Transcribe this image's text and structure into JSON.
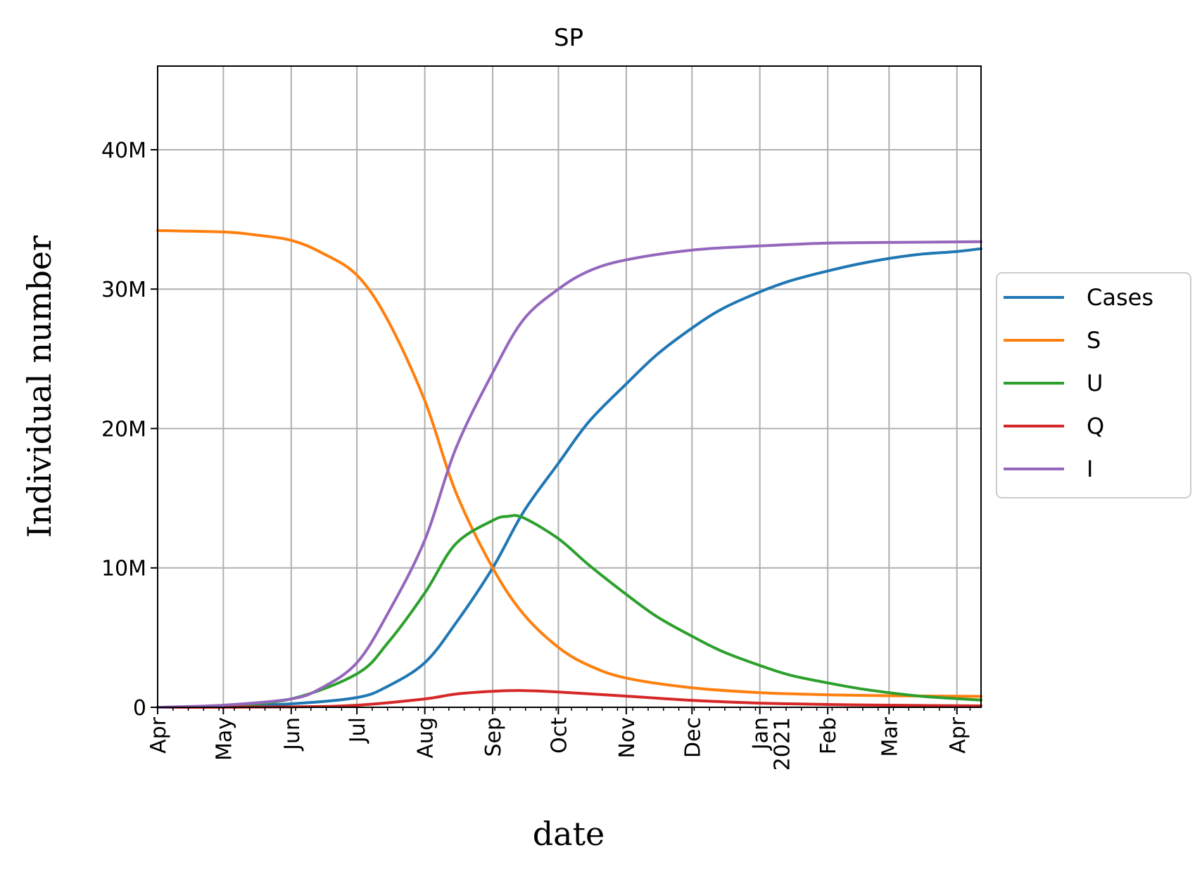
{
  "chart_data": {
    "type": "line",
    "title": "SP",
    "xlabel": "date",
    "ylabel": "Individual number",
    "ylim": [
      0,
      46000000
    ],
    "xlim": [
      "2020-04-01",
      "2021-04-12"
    ],
    "x_ticks": [
      {
        "date": "2020-04-01",
        "label": "Apr"
      },
      {
        "date": "2020-05-01",
        "label": "May"
      },
      {
        "date": "2020-06-01",
        "label": "Jun"
      },
      {
        "date": "2020-07-01",
        "label": "Jul"
      },
      {
        "date": "2020-08-01",
        "label": "Aug"
      },
      {
        "date": "2020-09-01",
        "label": "Sep"
      },
      {
        "date": "2020-10-01",
        "label": "Oct"
      },
      {
        "date": "2020-11-01",
        "label": "Nov"
      },
      {
        "date": "2020-12-01",
        "label": "Dec"
      },
      {
        "date": "2021-01-01",
        "label": "Jan",
        "label2": "2021"
      },
      {
        "date": "2021-02-01",
        "label": "Feb"
      },
      {
        "date": "2021-03-01",
        "label": "Mar"
      },
      {
        "date": "2021-04-01",
        "label": "Apr"
      }
    ],
    "y_ticks": [
      {
        "value": 0,
        "label": "0"
      },
      {
        "value": 10000000,
        "label": "10M"
      },
      {
        "value": 20000000,
        "label": "20M"
      },
      {
        "value": 30000000,
        "label": "30M"
      },
      {
        "value": 40000000,
        "label": "40M"
      }
    ],
    "grid": true,
    "legend_position": "right-outside",
    "series": [
      {
        "name": "Cases",
        "color": "#1f77b4",
        "points": [
          [
            "2020-04-01",
            0
          ],
          [
            "2020-05-01",
            60000
          ],
          [
            "2020-06-01",
            250000
          ],
          [
            "2020-07-01",
            700000
          ],
          [
            "2020-07-15",
            1500000
          ],
          [
            "2020-08-01",
            3200000
          ],
          [
            "2020-08-15",
            6000000
          ],
          [
            "2020-09-01",
            10000000
          ],
          [
            "2020-09-15",
            14000000
          ],
          [
            "2020-10-01",
            17500000
          ],
          [
            "2020-10-15",
            20500000
          ],
          [
            "2020-11-01",
            23200000
          ],
          [
            "2020-11-15",
            25300000
          ],
          [
            "2020-12-01",
            27200000
          ],
          [
            "2020-12-15",
            28600000
          ],
          [
            "2021-01-01",
            29800000
          ],
          [
            "2021-01-15",
            30600000
          ],
          [
            "2021-02-01",
            31300000
          ],
          [
            "2021-02-15",
            31800000
          ],
          [
            "2021-03-01",
            32200000
          ],
          [
            "2021-03-15",
            32500000
          ],
          [
            "2021-04-01",
            32700000
          ],
          [
            "2021-04-12",
            32900000
          ]
        ]
      },
      {
        "name": "S",
        "color": "#ff7f0e",
        "points": [
          [
            "2020-04-01",
            34200000
          ],
          [
            "2020-05-01",
            34100000
          ],
          [
            "2020-05-15",
            33900000
          ],
          [
            "2020-06-01",
            33500000
          ],
          [
            "2020-06-15",
            32600000
          ],
          [
            "2020-07-01",
            31000000
          ],
          [
            "2020-07-15",
            27800000
          ],
          [
            "2020-08-01",
            22000000
          ],
          [
            "2020-08-15",
            15500000
          ],
          [
            "2020-09-01",
            10000000
          ],
          [
            "2020-09-15",
            6700000
          ],
          [
            "2020-10-01",
            4300000
          ],
          [
            "2020-10-15",
            3000000
          ],
          [
            "2020-11-01",
            2100000
          ],
          [
            "2020-12-01",
            1400000
          ],
          [
            "2021-01-01",
            1050000
          ],
          [
            "2021-02-01",
            900000
          ],
          [
            "2021-03-01",
            830000
          ],
          [
            "2021-04-01",
            790000
          ],
          [
            "2021-04-12",
            780000
          ]
        ]
      },
      {
        "name": "U",
        "color": "#2ca02c",
        "points": [
          [
            "2020-04-01",
            0
          ],
          [
            "2020-05-01",
            120000
          ],
          [
            "2020-06-01",
            600000
          ],
          [
            "2020-07-01",
            2400000
          ],
          [
            "2020-07-15",
            4600000
          ],
          [
            "2020-08-01",
            8200000
          ],
          [
            "2020-08-15",
            11700000
          ],
          [
            "2020-09-01",
            13400000
          ],
          [
            "2020-09-08",
            13700000
          ],
          [
            "2020-09-15",
            13600000
          ],
          [
            "2020-10-01",
            12100000
          ],
          [
            "2020-10-15",
            10200000
          ],
          [
            "2020-11-01",
            8100000
          ],
          [
            "2020-11-15",
            6500000
          ],
          [
            "2020-12-01",
            5100000
          ],
          [
            "2020-12-15",
            4000000
          ],
          [
            "2021-01-01",
            3000000
          ],
          [
            "2021-01-15",
            2300000
          ],
          [
            "2021-02-01",
            1750000
          ],
          [
            "2021-02-15",
            1350000
          ],
          [
            "2021-03-01",
            1050000
          ],
          [
            "2021-03-15",
            800000
          ],
          [
            "2021-04-01",
            620000
          ],
          [
            "2021-04-12",
            520000
          ]
        ]
      },
      {
        "name": "Q",
        "color": "#d62728",
        "points": [
          [
            "2020-04-01",
            0
          ],
          [
            "2020-06-01",
            30000
          ],
          [
            "2020-07-01",
            150000
          ],
          [
            "2020-08-01",
            600000
          ],
          [
            "2020-08-15",
            950000
          ],
          [
            "2020-09-01",
            1150000
          ],
          [
            "2020-09-15",
            1200000
          ],
          [
            "2020-10-01",
            1100000
          ],
          [
            "2020-11-01",
            800000
          ],
          [
            "2020-12-01",
            500000
          ],
          [
            "2021-01-01",
            300000
          ],
          [
            "2021-02-01",
            200000
          ],
          [
            "2021-03-01",
            150000
          ],
          [
            "2021-04-12",
            100000
          ]
        ]
      },
      {
        "name": "I",
        "color": "#9467bd",
        "points": [
          [
            "2020-04-01",
            0
          ],
          [
            "2020-05-01",
            150000
          ],
          [
            "2020-06-01",
            600000
          ],
          [
            "2020-06-15",
            1400000
          ],
          [
            "2020-07-01",
            3200000
          ],
          [
            "2020-07-15",
            6700000
          ],
          [
            "2020-08-01",
            12000000
          ],
          [
            "2020-08-15",
            18500000
          ],
          [
            "2020-09-01",
            24000000
          ],
          [
            "2020-09-15",
            27800000
          ],
          [
            "2020-10-01",
            30000000
          ],
          [
            "2020-10-15",
            31300000
          ],
          [
            "2020-11-01",
            32100000
          ],
          [
            "2020-12-01",
            32800000
          ],
          [
            "2021-01-01",
            33100000
          ],
          [
            "2021-02-01",
            33300000
          ],
          [
            "2021-03-01",
            33350000
          ],
          [
            "2021-04-12",
            33400000
          ]
        ]
      }
    ]
  }
}
